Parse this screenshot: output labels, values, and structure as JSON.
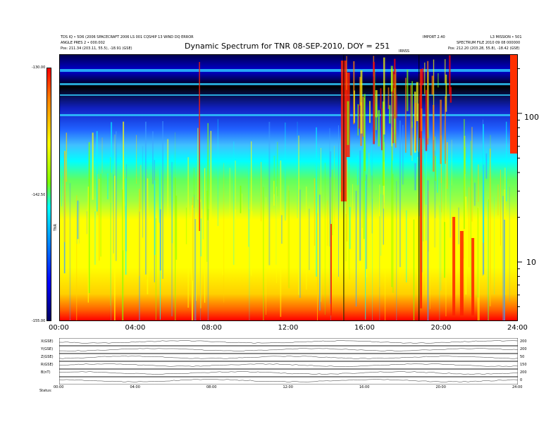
{
  "header": {
    "left_line1": "TDS IQ • 5D6 (2006 SPACECRAFT 2006 LS 001 CQSHIP 13 WIND DQ ERROR",
    "left_line2": "ANGLE PRES 2 • 000.002",
    "left_pos": "Pos: 211.34 (203.11, 55.5), -18.91 (GSE)",
    "right_line1": "IMPORT 2.40",
    "right_line2": "L3 MISSION • 501",
    "right_line3": "SPECTRUM FILE 2010 09 08 000000",
    "right_pos": "Pos: 212.20 (203.28, 55.8), -18.42 (GSE)",
    "mid_marker": "IRNSS"
  },
  "chart_data": {
    "type": "heatmap",
    "title": "Dynamic Spectrum for TNR 08-SEP-2010, DOY = 251",
    "x_ticks": [
      "00:00",
      "04:00",
      "08:00",
      "12:00",
      "16:00",
      "20:00",
      "24:00"
    ],
    "x_range_hours": [
      0,
      24
    ],
    "y_scale": "log",
    "y_range_khz": [
      4,
      250
    ],
    "y_ticks": [
      "100",
      "10"
    ],
    "y_tick_values": [
      100,
      10
    ],
    "colorbar_ticks": [
      "-130.00",
      "-142.50",
      "-155.00"
    ],
    "colorbar_label": "TNR",
    "colorscale": [
      "#000060",
      "#0000ff",
      "#0080ff",
      "#00ffff",
      "#80ff00",
      "#ffff00",
      "#ff8000",
      "#ff0000"
    ]
  },
  "ephemeris": {
    "rows": [
      {
        "label": "X(GSE)",
        "right": "200"
      },
      {
        "label": "Y(GSE)",
        "right": "200"
      },
      {
        "label": "Z(GSE)",
        "right": "50"
      },
      {
        "label": "R(GSE)",
        "right": "150"
      },
      {
        "label": "B(nT)",
        "right": "200"
      },
      {
        "label": "",
        "right": "0"
      }
    ],
    "x_ticks": [
      "00:00",
      "04:00",
      "08:00",
      "12:00",
      "16:00",
      "20:00",
      "24:00"
    ],
    "footer_label": "Status:"
  }
}
